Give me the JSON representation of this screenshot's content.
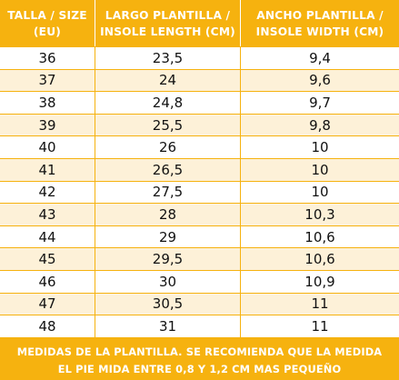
{
  "header": {
    "col1_line1": "TALLA / SIZE",
    "col1_line2": "(EU)",
    "col2_line1": "LARGO PLANTILLA /",
    "col2_line2": "INSOLE LENGTH (CM)",
    "col3_line1": "ANCHO PLANTILLA /",
    "col3_line2": "INSOLE WIDTH (CM)"
  },
  "rows": [
    {
      "size": "36",
      "length": "23,5",
      "width": "9,4"
    },
    {
      "size": "37",
      "length": "24",
      "width": "9,6"
    },
    {
      "size": "38",
      "length": "24,8",
      "width": "9,7"
    },
    {
      "size": "39",
      "length": "25,5",
      "width": "9,8"
    },
    {
      "size": "40",
      "length": "26",
      "width": "10"
    },
    {
      "size": "41",
      "length": "26,5",
      "width": "10"
    },
    {
      "size": "42",
      "length": "27,5",
      "width": "10"
    },
    {
      "size": "43",
      "length": "28",
      "width": "10,3"
    },
    {
      "size": "44",
      "length": "29",
      "width": "10,6"
    },
    {
      "size": "45",
      "length": "29,5",
      "width": "10,6"
    },
    {
      "size": "46",
      "length": "30",
      "width": "10,9"
    },
    {
      "size": "47",
      "length": "30,5",
      "width": "11"
    },
    {
      "size": "48",
      "length": "31",
      "width": "11"
    }
  ],
  "footer": {
    "line1": "MEDIDAS DE LA PLANTILLA. SE RECOMIENDA QUE LA MEDIDA",
    "line2": "EL PIE MIDA ENTRE 0,8 Y 1,2 CM MAS PEQUEÑO"
  },
  "colors": {
    "accent": "#f6b20f",
    "alt_row": "#fdf1d8",
    "row": "#ffffff",
    "header_text": "#ffffff"
  }
}
